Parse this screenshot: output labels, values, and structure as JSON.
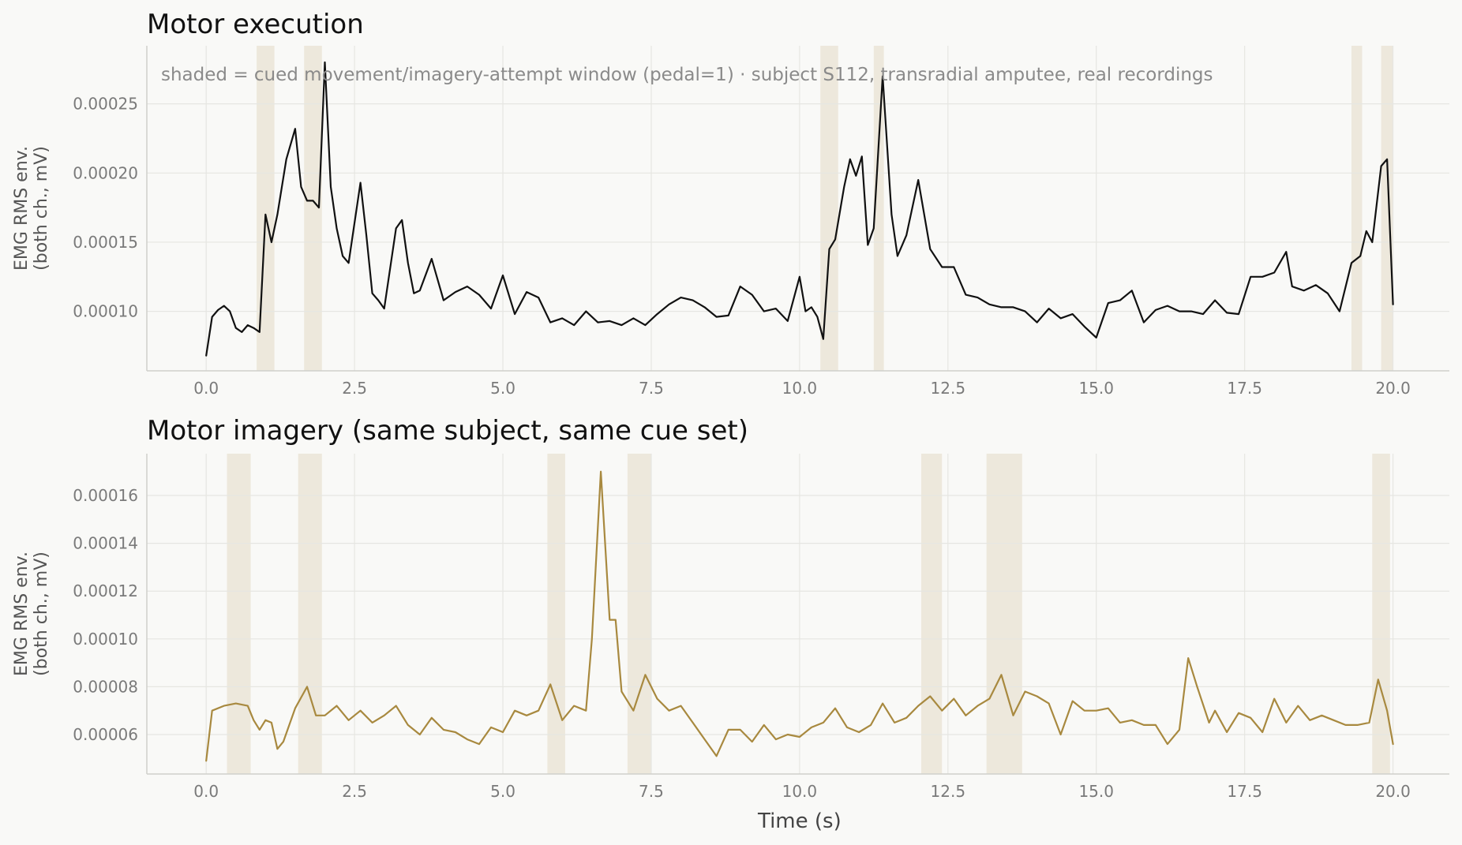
{
  "chart_data": [
    {
      "type": "line",
      "title": "Motor execution",
      "ylabel": [
        "EMG RMS env.",
        "(both ch., mV)"
      ],
      "xlabel": "",
      "xlim": [
        -1.0,
        20.95
      ],
      "ylim": [
        5.7e-05,
        0.000292
      ],
      "xticks": [
        0.0,
        2.5,
        5.0,
        7.5,
        10.0,
        12.5,
        15.0,
        17.5,
        20.0
      ],
      "xtick_labels": [
        "0.0",
        "2.5",
        "5.0",
        "7.5",
        "10.0",
        "12.5",
        "15.0",
        "17.5",
        "20.0"
      ],
      "yticks": [
        0.0001,
        0.00015,
        0.0002,
        0.00025
      ],
      "ytick_labels": [
        "0.00010",
        "0.00015",
        "0.00020",
        "0.00025"
      ],
      "grid": true,
      "line_color": "#111111",
      "shade_color": "#ede8dc",
      "annotation": "shaded = cued movement/imagery-attempt window (pedal=1)  ·  subject S112, transradial amputee, real recordings",
      "shaded_windows": [
        [
          0.85,
          1.15
        ],
        [
          1.65,
          1.95
        ],
        [
          10.35,
          10.65
        ],
        [
          11.25,
          11.42
        ],
        [
          19.3,
          19.48
        ],
        [
          19.8,
          20.0
        ]
      ],
      "series": [
        {
          "points": [
            [
              0.0,
              6.8e-05
            ],
            [
              0.1,
              9.6e-05
            ],
            [
              0.2,
              0.000101
            ],
            [
              0.3,
              0.000104
            ],
            [
              0.4,
              0.0001
            ],
            [
              0.5,
              8.8e-05
            ],
            [
              0.6,
              8.5e-05
            ],
            [
              0.7,
              9e-05
            ],
            [
              0.8,
              8.8e-05
            ],
            [
              0.9,
              8.5e-05
            ],
            [
              1.0,
              0.00017
            ],
            [
              1.1,
              0.00015
            ],
            [
              1.2,
              0.00017
            ],
            [
              1.35,
              0.00021
            ],
            [
              1.5,
              0.000232
            ],
            [
              1.6,
              0.00019
            ],
            [
              1.7,
              0.00018
            ],
            [
              1.8,
              0.00018
            ],
            [
              1.9,
              0.000175
            ],
            [
              2.0,
              0.00028
            ],
            [
              2.1,
              0.00019
            ],
            [
              2.2,
              0.00016
            ],
            [
              2.3,
              0.00014
            ],
            [
              2.4,
              0.000135
            ],
            [
              2.6,
              0.000193
            ],
            [
              2.7,
              0.000155
            ],
            [
              2.8,
              0.000113
            ],
            [
              2.9,
              0.000108
            ],
            [
              3.0,
              0.000102
            ],
            [
              3.2,
              0.00016
            ],
            [
              3.3,
              0.000166
            ],
            [
              3.4,
              0.000135
            ],
            [
              3.5,
              0.000113
            ],
            [
              3.6,
              0.000115
            ],
            [
              3.8,
              0.000138
            ],
            [
              4.0,
              0.000108
            ],
            [
              4.2,
              0.000114
            ],
            [
              4.4,
              0.000118
            ],
            [
              4.6,
              0.000112
            ],
            [
              4.8,
              0.000102
            ],
            [
              5.0,
              0.000126
            ],
            [
              5.2,
              9.8e-05
            ],
            [
              5.4,
              0.000114
            ],
            [
              5.6,
              0.00011
            ],
            [
              5.8,
              9.2e-05
            ],
            [
              6.0,
              9.5e-05
            ],
            [
              6.2,
              9e-05
            ],
            [
              6.4,
              0.0001
            ],
            [
              6.6,
              9.2e-05
            ],
            [
              6.8,
              9.3e-05
            ],
            [
              7.0,
              9e-05
            ],
            [
              7.2,
              9.5e-05
            ],
            [
              7.4,
              9e-05
            ],
            [
              7.6,
              9.8e-05
            ],
            [
              7.8,
              0.000105
            ],
            [
              8.0,
              0.00011
            ],
            [
              8.2,
              0.000108
            ],
            [
              8.4,
              0.000103
            ],
            [
              8.6,
              9.6e-05
            ],
            [
              8.8,
              9.7e-05
            ],
            [
              9.0,
              0.000118
            ],
            [
              9.2,
              0.000112
            ],
            [
              9.4,
              0.0001
            ],
            [
              9.6,
              0.000102
            ],
            [
              9.8,
              9.3e-05
            ],
            [
              10.0,
              0.000125
            ],
            [
              10.1,
              0.0001
            ],
            [
              10.2,
              0.000103
            ],
            [
              10.3,
              9.6e-05
            ],
            [
              10.4,
              8e-05
            ],
            [
              10.5,
              0.000145
            ],
            [
              10.6,
              0.000152
            ],
            [
              10.75,
              0.00019
            ],
            [
              10.85,
              0.00021
            ],
            [
              10.95,
              0.000198
            ],
            [
              11.05,
              0.000212
            ],
            [
              11.15,
              0.000148
            ],
            [
              11.25,
              0.00016
            ],
            [
              11.4,
              0.00027
            ],
            [
              11.55,
              0.00017
            ],
            [
              11.65,
              0.00014
            ],
            [
              11.8,
              0.000155
            ],
            [
              12.0,
              0.000195
            ],
            [
              12.2,
              0.000145
            ],
            [
              12.4,
              0.000132
            ],
            [
              12.6,
              0.000132
            ],
            [
              12.8,
              0.000112
            ],
            [
              13.0,
              0.00011
            ],
            [
              13.2,
              0.000105
            ],
            [
              13.4,
              0.000103
            ],
            [
              13.6,
              0.000103
            ],
            [
              13.8,
              0.0001
            ],
            [
              14.0,
              9.2e-05
            ],
            [
              14.2,
              0.000102
            ],
            [
              14.4,
              9.5e-05
            ],
            [
              14.6,
              9.8e-05
            ],
            [
              14.8,
              8.9e-05
            ],
            [
              15.0,
              8.1e-05
            ],
            [
              15.2,
              0.000106
            ],
            [
              15.4,
              0.000108
            ],
            [
              15.6,
              0.000115
            ],
            [
              15.8,
              9.2e-05
            ],
            [
              16.0,
              0.000101
            ],
            [
              16.2,
              0.000104
            ],
            [
              16.4,
              0.0001
            ],
            [
              16.6,
              0.0001
            ],
            [
              16.8,
              9.8e-05
            ],
            [
              17.0,
              0.000108
            ],
            [
              17.2,
              9.9e-05
            ],
            [
              17.4,
              9.8e-05
            ],
            [
              17.6,
              0.000125
            ],
            [
              17.8,
              0.000125
            ],
            [
              18.0,
              0.000128
            ],
            [
              18.2,
              0.000143
            ],
            [
              18.3,
              0.000118
            ],
            [
              18.5,
              0.000115
            ],
            [
              18.7,
              0.000119
            ],
            [
              18.9,
              0.000113
            ],
            [
              19.1,
              0.0001
            ],
            [
              19.3,
              0.000135
            ],
            [
              19.45,
              0.00014
            ],
            [
              19.55,
              0.000158
            ],
            [
              19.65,
              0.00015
            ],
            [
              19.8,
              0.000205
            ],
            [
              19.9,
              0.00021
            ],
            [
              20.0,
              0.000105
            ]
          ]
        }
      ]
    },
    {
      "type": "line",
      "title": "Motor imagery (same subject, same cue set)",
      "ylabel": [
        "EMG RMS env.",
        "(both ch., mV)"
      ],
      "xlabel": "Time (s)",
      "xlim": [
        -1.0,
        20.95
      ],
      "ylim": [
        4.35e-05,
        0.0001775
      ],
      "xticks": [
        0.0,
        2.5,
        5.0,
        7.5,
        10.0,
        12.5,
        15.0,
        17.5,
        20.0
      ],
      "xtick_labels": [
        "0.0",
        "2.5",
        "5.0",
        "7.5",
        "10.0",
        "12.5",
        "15.0",
        "17.5",
        "20.0"
      ],
      "yticks": [
        6e-05,
        8e-05,
        0.0001,
        0.00012,
        0.00014,
        0.00016
      ],
      "ytick_labels": [
        "0.00006",
        "0.00008",
        "0.00010",
        "0.00012",
        "0.00014",
        "0.00016"
      ],
      "grid": true,
      "line_color": "#a8893f",
      "shade_color": "#ede8dc",
      "shaded_windows": [
        [
          0.35,
          0.75
        ],
        [
          1.55,
          1.95
        ],
        [
          5.75,
          6.05
        ],
        [
          7.1,
          7.5
        ],
        [
          12.05,
          12.4
        ],
        [
          13.15,
          13.75
        ],
        [
          19.65,
          19.95
        ]
      ],
      "series": [
        {
          "points": [
            [
              0.0,
              4.9e-05
            ],
            [
              0.1,
              7e-05
            ],
            [
              0.3,
              7.2e-05
            ],
            [
              0.5,
              7.3e-05
            ],
            [
              0.7,
              7.2e-05
            ],
            [
              0.8,
              6.6e-05
            ],
            [
              0.9,
              6.2e-05
            ],
            [
              1.0,
              6.6e-05
            ],
            [
              1.1,
              6.5e-05
            ],
            [
              1.2,
              5.4e-05
            ],
            [
              1.3,
              5.7e-05
            ],
            [
              1.5,
              7.1e-05
            ],
            [
              1.7,
              8e-05
            ],
            [
              1.85,
              6.8e-05
            ],
            [
              2.0,
              6.8e-05
            ],
            [
              2.2,
              7.2e-05
            ],
            [
              2.4,
              6.6e-05
            ],
            [
              2.6,
              7e-05
            ],
            [
              2.8,
              6.5e-05
            ],
            [
              3.0,
              6.8e-05
            ],
            [
              3.2,
              7.2e-05
            ],
            [
              3.4,
              6.4e-05
            ],
            [
              3.6,
              6e-05
            ],
            [
              3.8,
              6.7e-05
            ],
            [
              4.0,
              6.2e-05
            ],
            [
              4.2,
              6.1e-05
            ],
            [
              4.4,
              5.8e-05
            ],
            [
              4.6,
              5.6e-05
            ],
            [
              4.8,
              6.3e-05
            ],
            [
              5.0,
              6.1e-05
            ],
            [
              5.2,
              7e-05
            ],
            [
              5.4,
              6.8e-05
            ],
            [
              5.6,
              7e-05
            ],
            [
              5.8,
              8.1e-05
            ],
            [
              6.0,
              6.6e-05
            ],
            [
              6.2,
              7.2e-05
            ],
            [
              6.4,
              7e-05
            ],
            [
              6.5,
              0.0001
            ],
            [
              6.65,
              0.00017
            ],
            [
              6.8,
              0.000108
            ],
            [
              6.9,
              0.000108
            ],
            [
              7.0,
              7.8e-05
            ],
            [
              7.2,
              7e-05
            ],
            [
              7.4,
              8.5e-05
            ],
            [
              7.6,
              7.5e-05
            ],
            [
              7.8,
              7e-05
            ],
            [
              8.0,
              7.2e-05
            ],
            [
              8.2,
              6.5e-05
            ],
            [
              8.4,
              5.8e-05
            ],
            [
              8.6,
              5.1e-05
            ],
            [
              8.8,
              6.2e-05
            ],
            [
              9.0,
              6.2e-05
            ],
            [
              9.2,
              5.7e-05
            ],
            [
              9.4,
              6.4e-05
            ],
            [
              9.6,
              5.8e-05
            ],
            [
              9.8,
              6e-05
            ],
            [
              10.0,
              5.9e-05
            ],
            [
              10.2,
              6.3e-05
            ],
            [
              10.4,
              6.5e-05
            ],
            [
              10.6,
              7.1e-05
            ],
            [
              10.8,
              6.3e-05
            ],
            [
              11.0,
              6.1e-05
            ],
            [
              11.2,
              6.4e-05
            ],
            [
              11.4,
              7.3e-05
            ],
            [
              11.6,
              6.5e-05
            ],
            [
              11.8,
              6.7e-05
            ],
            [
              12.0,
              7.2e-05
            ],
            [
              12.2,
              7.6e-05
            ],
            [
              12.4,
              7e-05
            ],
            [
              12.6,
              7.5e-05
            ],
            [
              12.8,
              6.8e-05
            ],
            [
              13.0,
              7.2e-05
            ],
            [
              13.2,
              7.5e-05
            ],
            [
              13.4,
              8.5e-05
            ],
            [
              13.6,
              6.8e-05
            ],
            [
              13.8,
              7.8e-05
            ],
            [
              14.0,
              7.6e-05
            ],
            [
              14.2,
              7.3e-05
            ],
            [
              14.4,
              6e-05
            ],
            [
              14.6,
              7.4e-05
            ],
            [
              14.8,
              7e-05
            ],
            [
              15.0,
              7e-05
            ],
            [
              15.2,
              7.1e-05
            ],
            [
              15.4,
              6.5e-05
            ],
            [
              15.6,
              6.6e-05
            ],
            [
              15.8,
              6.4e-05
            ],
            [
              16.0,
              6.4e-05
            ],
            [
              16.2,
              5.6e-05
            ],
            [
              16.4,
              6.2e-05
            ],
            [
              16.55,
              9.2e-05
            ],
            [
              16.7,
              8e-05
            ],
            [
              16.9,
              6.5e-05
            ],
            [
              17.0,
              7e-05
            ],
            [
              17.2,
              6.1e-05
            ],
            [
              17.4,
              6.9e-05
            ],
            [
              17.6,
              6.7e-05
            ],
            [
              17.8,
              6.1e-05
            ],
            [
              18.0,
              7.5e-05
            ],
            [
              18.2,
              6.5e-05
            ],
            [
              18.4,
              7.2e-05
            ],
            [
              18.6,
              6.6e-05
            ],
            [
              18.8,
              6.8e-05
            ],
            [
              19.0,
              6.6e-05
            ],
            [
              19.2,
              6.4e-05
            ],
            [
              19.4,
              6.4e-05
            ],
            [
              19.6,
              6.5e-05
            ],
            [
              19.75,
              8.3e-05
            ],
            [
              19.9,
              7e-05
            ],
            [
              20.0,
              5.6e-05
            ]
          ]
        }
      ]
    }
  ]
}
